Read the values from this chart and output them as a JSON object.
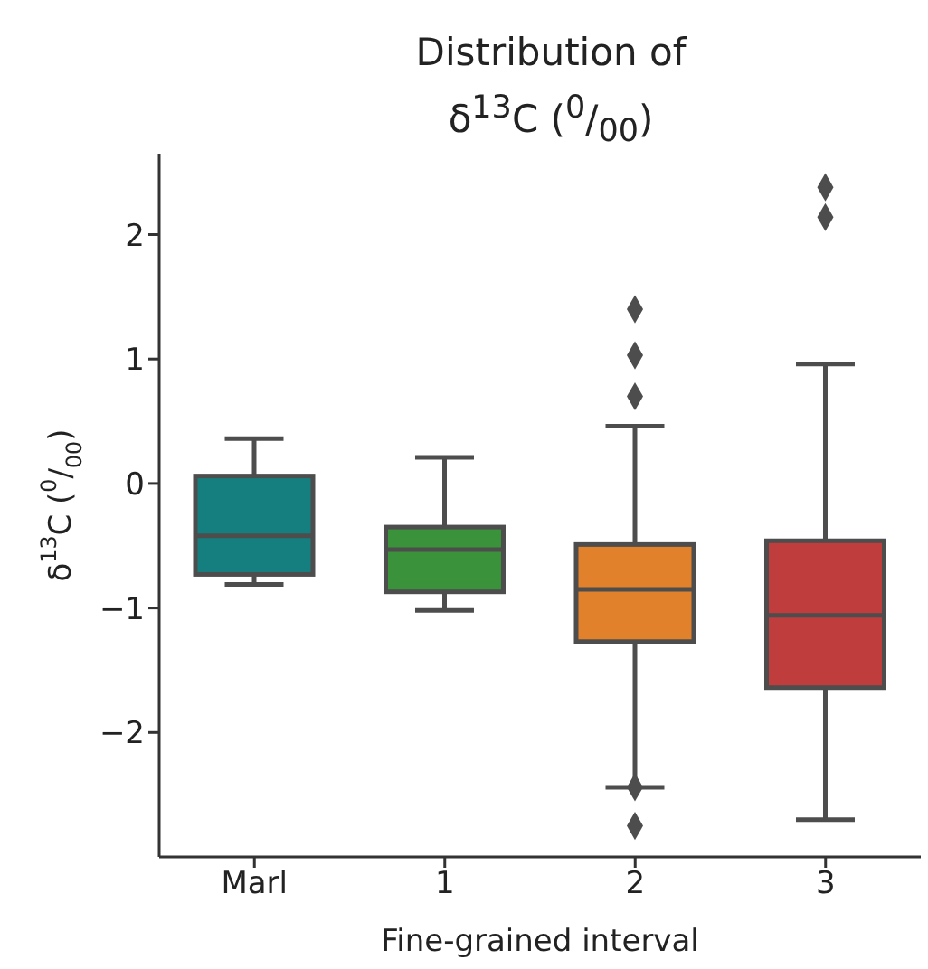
{
  "chart_data": {
    "type": "box",
    "title": "Distribution of\nδ$^{13}$C ($^{0}$/$_{00}$)",
    "xlabel": "Fine-grained interval",
    "ylabel": "δ$^{13}$C ($^{0}$/$_{00}$)",
    "categories": [
      "Marl",
      "1",
      "2",
      "3"
    ],
    "colors": [
      "#157f7f",
      "#3a923a",
      "#e1812c",
      "#c03d3e"
    ],
    "boxes": [
      {
        "low": -0.81,
        "q1": -0.73,
        "median": -0.42,
        "q3": 0.06,
        "high": 0.36
      },
      {
        "low": -1.02,
        "q1": -0.87,
        "median": -0.53,
        "q3": -0.35,
        "high": 0.21
      },
      {
        "low": -2.44,
        "q1": -1.27,
        "median": -0.85,
        "q3": -0.49,
        "high": 0.46,
        "outliers": [
          1.4,
          1.03,
          0.7,
          -2.44,
          -2.75
        ]
      },
      {
        "low": -2.7,
        "q1": -1.64,
        "median": -1.06,
        "q3": -0.46,
        "high": 0.96,
        "outliers": [
          2.38,
          2.14
        ]
      }
    ],
    "ylim": [
      -3.0,
      2.65
    ],
    "yticks": [
      -2,
      -1,
      0,
      1,
      2
    ],
    "marker": "diamond",
    "grid": false,
    "legend": false
  }
}
